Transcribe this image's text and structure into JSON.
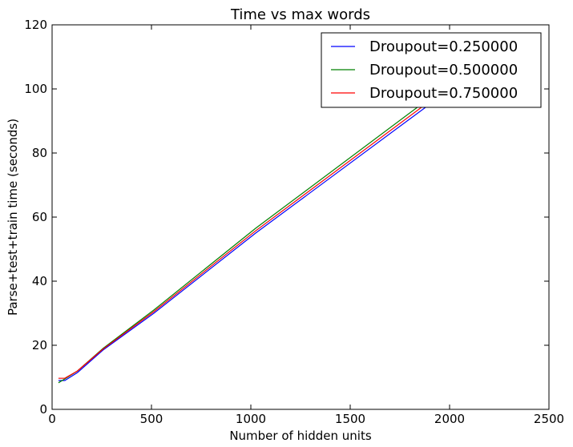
{
  "chart_data": {
    "type": "line",
    "title": "Time vs max words",
    "xlabel": "Number of hidden units",
    "ylabel": "Parse+test+train time (seconds)",
    "xlim": [
      0,
      2500
    ],
    "ylim": [
      0,
      120
    ],
    "xticks": [
      0,
      500,
      1000,
      1500,
      2000,
      2500
    ],
    "yticks": [
      0,
      20,
      40,
      60,
      80,
      100,
      120
    ],
    "grid": false,
    "legend_position": "top-right",
    "series": [
      {
        "name": "Droupout=0.250000",
        "color": "#0000ff",
        "x": [
          32,
          64,
          128,
          256,
          512,
          1024,
          2048
        ],
        "y": [
          9.0,
          9.0,
          11.5,
          18.5,
          30.0,
          55.0,
          102.0
        ]
      },
      {
        "name": "Droupout=0.500000",
        "color": "#008000",
        "x": [
          32,
          64,
          128,
          256,
          512,
          1024,
          2048
        ],
        "y": [
          8.3,
          9.5,
          12.0,
          19.0,
          31.0,
          56.5,
          104.0
        ]
      },
      {
        "name": "Droupout=0.750000",
        "color": "#ff0000",
        "x": [
          32,
          64,
          128,
          256,
          512,
          1024,
          2048
        ],
        "y": [
          9.7,
          9.7,
          12.0,
          18.8,
          30.5,
          55.7,
          103.0
        ]
      }
    ]
  }
}
